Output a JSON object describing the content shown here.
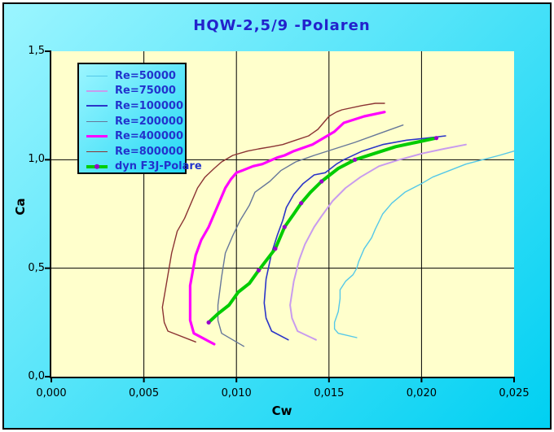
{
  "window": {
    "frame_outer_color": "#FFFFFF",
    "frame_line_color": "#000000"
  },
  "chart_data": {
    "type": "line",
    "title": "HQW-2,5/9 -Polaren",
    "xlabel": "Cw",
    "ylabel": "Ca",
    "xlim": [
      0,
      0.025
    ],
    "ylim": [
      0,
      1.5
    ],
    "grid": true,
    "legend_position": "top-left",
    "xticks": {
      "values": [
        0,
        0.005,
        0.01,
        0.015,
        0.02,
        0.025
      ],
      "labels": [
        "0,000",
        "0,005",
        "0,010",
        "0,015",
        "0,020",
        "0,025"
      ]
    },
    "yticks": {
      "values": [
        0,
        0.5,
        1.0,
        1.5
      ],
      "labels": [
        "0,0",
        "0,5",
        "1,0",
        "1,5"
      ]
    },
    "style": {
      "bg_gradient_start": "#9BF5FF",
      "bg_gradient_end": "#00D0F2",
      "plot_bg": "#FFFFCC",
      "grid_color": "#000000",
      "axis_color": "#000000",
      "title_color": "#2222CC",
      "legend_text_color": "#2233CC",
      "tick_text_color": "#000000"
    },
    "series": [
      {
        "id": "re50000",
        "name": "Re=50000",
        "color": "#55C8E8",
        "width": 1.4,
        "x": [
          0.0165,
          0.0155,
          0.0153,
          0.0153,
          0.0155,
          0.0156,
          0.0156,
          0.0159,
          0.0163,
          0.0165,
          0.0166,
          0.0169,
          0.0173,
          0.0175,
          0.0179,
          0.0184,
          0.0191,
          0.02,
          0.0206,
          0.0215,
          0.0224,
          0.0233,
          0.0242,
          0.025
        ],
        "y": [
          0.18,
          0.2,
          0.22,
          0.25,
          0.3,
          0.36,
          0.4,
          0.44,
          0.47,
          0.5,
          0.53,
          0.59,
          0.64,
          0.68,
          0.75,
          0.8,
          0.85,
          0.89,
          0.92,
          0.95,
          0.98,
          1.0,
          1.02,
          1.04
        ]
      },
      {
        "id": "re75000",
        "name": "Re=75000",
        "color": "#C89BEE",
        "width": 2,
        "x": [
          0.0143,
          0.0133,
          0.013,
          0.0129,
          0.0131,
          0.0134,
          0.0137,
          0.0142,
          0.0146,
          0.0152,
          0.0159,
          0.0167,
          0.0177,
          0.0188,
          0.0201,
          0.0212,
          0.0224
        ],
        "y": [
          0.17,
          0.21,
          0.27,
          0.33,
          0.44,
          0.54,
          0.61,
          0.69,
          0.74,
          0.81,
          0.87,
          0.92,
          0.97,
          1.0,
          1.03,
          1.05,
          1.07
        ]
      },
      {
        "id": "re100000",
        "name": "Re=100000",
        "color": "#2B35C8",
        "width": 1.6,
        "x": [
          0.0128,
          0.0119,
          0.0116,
          0.0115,
          0.0116,
          0.0119,
          0.0122,
          0.0125,
          0.0127,
          0.0131,
          0.0136,
          0.0142,
          0.0148,
          0.0154,
          0.0158,
          0.0168,
          0.0179,
          0.0192,
          0.0203,
          0.0213
        ],
        "y": [
          0.17,
          0.21,
          0.27,
          0.34,
          0.45,
          0.57,
          0.65,
          0.72,
          0.78,
          0.84,
          0.89,
          0.93,
          0.94,
          0.98,
          1.0,
          1.04,
          1.07,
          1.09,
          1.1,
          1.11
        ]
      },
      {
        "id": "re200000",
        "name": "Re=200000",
        "color": "#667799",
        "width": 1.4,
        "x": [
          0.0104,
          0.0092,
          0.009,
          0.009,
          0.0092,
          0.0094,
          0.0098,
          0.0102,
          0.0107,
          0.011,
          0.0118,
          0.0124,
          0.0132,
          0.0142,
          0.0153,
          0.0164,
          0.0177,
          0.019
        ],
        "y": [
          0.14,
          0.2,
          0.26,
          0.33,
          0.46,
          0.57,
          0.65,
          0.72,
          0.79,
          0.85,
          0.9,
          0.95,
          0.99,
          1.02,
          1.05,
          1.08,
          1.12,
          1.16
        ]
      },
      {
        "id": "re400000",
        "name": "Re=400000",
        "color": "#FF00FF",
        "width": 3.2,
        "x": [
          0.0088,
          0.0077,
          0.0075,
          0.0075,
          0.0078,
          0.0081,
          0.0085,
          0.0087,
          0.0089,
          0.0091,
          0.0094,
          0.0097,
          0.01,
          0.0103,
          0.0109,
          0.0114,
          0.0122,
          0.0126,
          0.0131,
          0.0141,
          0.0153,
          0.0158,
          0.0169,
          0.018
        ],
        "y": [
          0.15,
          0.2,
          0.26,
          0.42,
          0.56,
          0.63,
          0.69,
          0.73,
          0.77,
          0.81,
          0.87,
          0.91,
          0.94,
          0.95,
          0.97,
          0.98,
          1.01,
          1.02,
          1.04,
          1.07,
          1.13,
          1.17,
          1.2,
          1.22
        ]
      },
      {
        "id": "re800000",
        "name": "Re=800000",
        "color": "#8B3333",
        "width": 1.4,
        "x": [
          0.0078,
          0.0063,
          0.0061,
          0.006,
          0.0062,
          0.0065,
          0.0068,
          0.0072,
          0.0075,
          0.0079,
          0.0083,
          0.0088,
          0.0092,
          0.0098,
          0.0106,
          0.0112,
          0.0119,
          0.0125,
          0.0132,
          0.0139,
          0.0144,
          0.0147,
          0.015,
          0.0154,
          0.0157,
          0.0168,
          0.0175,
          0.018
        ],
        "y": [
          0.16,
          0.21,
          0.25,
          0.32,
          0.42,
          0.57,
          0.67,
          0.73,
          0.79,
          0.87,
          0.92,
          0.96,
          0.99,
          1.02,
          1.04,
          1.05,
          1.06,
          1.07,
          1.09,
          1.11,
          1.14,
          1.17,
          1.2,
          1.22,
          1.23,
          1.25,
          1.26,
          1.26
        ]
      },
      {
        "id": "dyn-f3j",
        "name": "dyn F3J-Polare",
        "color": "#00CC00",
        "width": 4,
        "marker_color": "#9900CC",
        "x": [
          0.0085,
          0.009,
          0.0096,
          0.0101,
          0.0107,
          0.0112,
          0.0121,
          0.0126,
          0.0131,
          0.0135,
          0.014,
          0.0146,
          0.0155,
          0.0164,
          0.0175,
          0.0186,
          0.0197,
          0.0208
        ],
        "y": [
          0.25,
          0.29,
          0.33,
          0.39,
          0.43,
          0.49,
          0.59,
          0.69,
          0.75,
          0.8,
          0.85,
          0.9,
          0.96,
          1.0,
          1.03,
          1.06,
          1.08,
          1.1
        ],
        "markers": [
          [
            0.0085,
            0.25
          ],
          [
            0.0112,
            0.49
          ],
          [
            0.0121,
            0.59
          ],
          [
            0.0126,
            0.69
          ],
          [
            0.0135,
            0.8
          ],
          [
            0.0146,
            0.9
          ],
          [
            0.0164,
            1.0
          ],
          [
            0.0208,
            1.1
          ]
        ]
      }
    ]
  }
}
